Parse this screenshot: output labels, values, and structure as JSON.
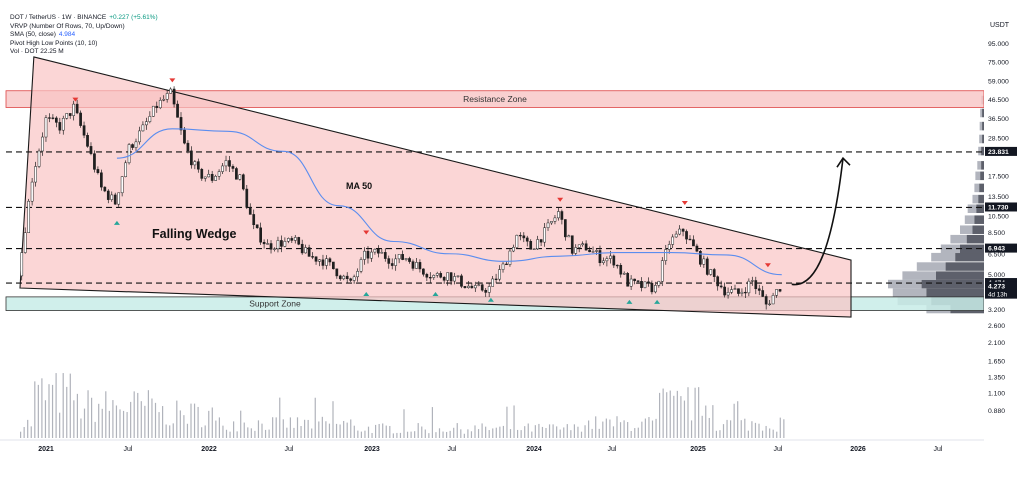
{
  "legend": {
    "symbol": "DOT / TetherUS · 1W · BINANCE",
    "change": "+0.227 (+5.61%)",
    "line2": "VRVP (Number Of Rows, 70, Up/Down)",
    "line3_label": "SMA (50, close)",
    "line3_value": "4.984",
    "line4": "Pivot High Low Points (10, 10)",
    "line5_label": "Vol · DOT",
    "line5_value": "22.25 M"
  },
  "price_axis": {
    "currency": "USDT",
    "ticks": [
      "95.000",
      "75.000",
      "59.000",
      "46.500",
      "36.500",
      "28.500",
      "17.500",
      "13.500",
      "10.500",
      "8.500",
      "6.500",
      "5.000",
      "3.200",
      "2.600",
      "2.100",
      "1.650",
      "1.350",
      "1.100",
      "0.880"
    ],
    "tick_values": [
      95,
      75,
      59,
      46.5,
      36.5,
      28.5,
      17.5,
      13.5,
      10.5,
      8.5,
      6.5,
      5.0,
      3.2,
      2.6,
      2.1,
      1.65,
      1.35,
      1.1,
      0.88
    ],
    "badges": [
      {
        "label": "23.831",
        "value": 23.831,
        "color": "#131722"
      },
      {
        "label": "11.730",
        "value": 11.73,
        "color": "#131722"
      },
      {
        "label": "6.943",
        "value": 6.943,
        "color": "#131722"
      },
      {
        "label": "4.474",
        "value": 4.474,
        "color": "#131722"
      },
      {
        "label": "4.273",
        "value": 4.273,
        "color": "#131722",
        "sub": "4d 13h"
      }
    ]
  },
  "time_axis": {
    "labels": [
      "2021",
      "Jul",
      "2022",
      "Jul",
      "2023",
      "Jul",
      "2024",
      "Jul",
      "2025",
      "Jul",
      "2026",
      "Jul"
    ],
    "bold": [
      true,
      false,
      true,
      false,
      true,
      false,
      true,
      false,
      true,
      false,
      true,
      false
    ]
  },
  "annotations": {
    "resistance": "Resistance Zone",
    "support": "Support Zone",
    "wedge": "Falling Wedge",
    "ma": "MA 50"
  },
  "colors": {
    "wedge_fill": "#f9c5c5",
    "resistance_fill": "#f8c8c8",
    "support_fill": "#c8ece8",
    "candle": "#1f1f1f",
    "ma_line": "#5b8def",
    "pivot_high": "#e53935",
    "pivot_low": "#26a69a",
    "volume": "#b0b3bb",
    "profile_dark": "#5d606b",
    "profile_light": "#b2b5be"
  },
  "chart_data": {
    "type": "candlestick",
    "symbol": "DOT/USDT",
    "interval": "1W",
    "scale": "log",
    "ylim": [
      0.8,
      110
    ],
    "weekly_closes": [
      {
        "date": "2020-12",
        "close": 4.9
      },
      {
        "date": "2021-01",
        "close": 17.0
      },
      {
        "date": "2021-02",
        "close": 36.0
      },
      {
        "date": "2021-03",
        "close": 33.0
      },
      {
        "date": "2021-04",
        "close": 42.0
      },
      {
        "date": "2021-05",
        "close": 26.0
      },
      {
        "date": "2021-06",
        "close": 15.0
      },
      {
        "date": "2021-07",
        "close": 12.5
      },
      {
        "date": "2021-08",
        "close": 25.0
      },
      {
        "date": "2021-09",
        "close": 32.0
      },
      {
        "date": "2021-10",
        "close": 43.0
      },
      {
        "date": "2021-11",
        "close": 50.0
      },
      {
        "date": "2021-12",
        "close": 26.0
      },
      {
        "date": "2022-01",
        "close": 18.0
      },
      {
        "date": "2022-02",
        "close": 17.0
      },
      {
        "date": "2022-03",
        "close": 21.0
      },
      {
        "date": "2022-04",
        "close": 17.0
      },
      {
        "date": "2022-05",
        "close": 9.0
      },
      {
        "date": "2022-06",
        "close": 7.2
      },
      {
        "date": "2022-07",
        "close": 7.5
      },
      {
        "date": "2022-08",
        "close": 7.5
      },
      {
        "date": "2022-09",
        "close": 6.3
      },
      {
        "date": "2022-10",
        "close": 6.0
      },
      {
        "date": "2022-11",
        "close": 5.2
      },
      {
        "date": "2022-12",
        "close": 4.4
      },
      {
        "date": "2023-01",
        "close": 6.3
      },
      {
        "date": "2023-02",
        "close": 6.6
      },
      {
        "date": "2023-03",
        "close": 6.0
      },
      {
        "date": "2023-04",
        "close": 6.2
      },
      {
        "date": "2023-05",
        "close": 5.4
      },
      {
        "date": "2023-06",
        "close": 4.9
      },
      {
        "date": "2023-07",
        "close": 5.0
      },
      {
        "date": "2023-08",
        "close": 4.5
      },
      {
        "date": "2023-09",
        "close": 4.1
      },
      {
        "date": "2023-10",
        "close": 4.2
      },
      {
        "date": "2023-11",
        "close": 5.5
      },
      {
        "date": "2023-12",
        "close": 8.2
      },
      {
        "date": "2024-01",
        "close": 7.0
      },
      {
        "date": "2024-02",
        "close": 8.5
      },
      {
        "date": "2024-03",
        "close": 11.0
      },
      {
        "date": "2024-04",
        "close": 6.8
      },
      {
        "date": "2024-05",
        "close": 7.1
      },
      {
        "date": "2024-06",
        "close": 6.2
      },
      {
        "date": "2024-07",
        "close": 6.0
      },
      {
        "date": "2024-08",
        "close": 4.5
      },
      {
        "date": "2024-09",
        "close": 4.3
      },
      {
        "date": "2024-10",
        "close": 4.2
      },
      {
        "date": "2024-11",
        "close": 7.5
      },
      {
        "date": "2024-12",
        "close": 8.8
      },
      {
        "date": "2025-01",
        "close": 6.5
      },
      {
        "date": "2025-02",
        "close": 5.0
      },
      {
        "date": "2025-03",
        "close": 4.1
      },
      {
        "date": "2025-04",
        "close": 3.9
      },
      {
        "date": "2025-05",
        "close": 4.6
      },
      {
        "date": "2025-06",
        "close": 3.4
      },
      {
        "date": "2025-07",
        "close": 4.27
      }
    ],
    "sma50": {
      "name": "MA 50",
      "points": [
        {
          "date": "2021-07",
          "value": 22
        },
        {
          "date": "2021-11",
          "value": 32
        },
        {
          "date": "2022-03",
          "value": 31
        },
        {
          "date": "2022-07",
          "value": 24
        },
        {
          "date": "2022-11",
          "value": 12
        },
        {
          "date": "2023-03",
          "value": 7.6
        },
        {
          "date": "2023-07",
          "value": 6.5
        },
        {
          "date": "2023-11",
          "value": 5.9
        },
        {
          "date": "2024-03",
          "value": 6.3
        },
        {
          "date": "2024-07",
          "value": 6.6
        },
        {
          "date": "2024-11",
          "value": 6.6
        },
        {
          "date": "2025-03",
          "value": 6.4
        },
        {
          "date": "2025-07",
          "value": 4.98
        }
      ]
    },
    "zones": [
      {
        "name": "Resistance Zone",
        "low": 42,
        "high": 52
      },
      {
        "name": "Support Zone",
        "low": 3.15,
        "high": 3.75
      }
    ],
    "horizontal_levels": [
      23.831,
      11.73,
      6.943,
      4.474
    ],
    "wedge": {
      "name": "Falling Wedge",
      "upper": [
        {
          "date": "2021-01",
          "value": 80
        },
        {
          "date": "2025-12",
          "value": 6.0
        }
      ],
      "lower": [
        {
          "date": "2020-12",
          "value": 4.2
        },
        {
          "date": "2025-12",
          "value": 2.9
        }
      ]
    },
    "pivot_highs": [
      {
        "date": "2021-04",
        "value": 43
      },
      {
        "date": "2021-11",
        "value": 55
      },
      {
        "date": "2023-01",
        "value": 7.9
      },
      {
        "date": "2024-03",
        "value": 12.0
      },
      {
        "date": "2024-12",
        "value": 11.5
      },
      {
        "date": "2025-06",
        "value": 5.2
      }
    ],
    "pivot_lows": [
      {
        "date": "2021-07",
        "value": 10.4
      },
      {
        "date": "2023-01",
        "value": 4.2
      },
      {
        "date": "2023-06",
        "value": 4.2
      },
      {
        "date": "2023-10",
        "value": 3.9
      },
      {
        "date": "2024-08",
        "value": 3.8
      },
      {
        "date": "2024-10",
        "value": 3.8
      }
    ],
    "projection": {
      "from": {
        "date": "2025-07",
        "value": 4.4
      },
      "to": {
        "date": "2025-12",
        "value": 22
      }
    },
    "volume_series": {
      "name": "Vol · DOT",
      "last": "22.25 M"
    }
  }
}
